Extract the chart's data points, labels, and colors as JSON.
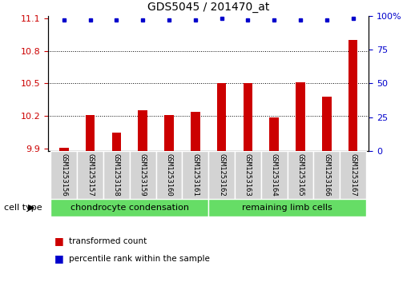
{
  "title": "GDS5045 / 201470_at",
  "samples": [
    "GSM1253156",
    "GSM1253157",
    "GSM1253158",
    "GSM1253159",
    "GSM1253160",
    "GSM1253161",
    "GSM1253162",
    "GSM1253163",
    "GSM1253164",
    "GSM1253165",
    "GSM1253166",
    "GSM1253167"
  ],
  "bar_values": [
    9.91,
    10.21,
    10.05,
    10.25,
    10.21,
    10.24,
    10.5,
    10.5,
    10.19,
    10.51,
    10.38,
    10.9
  ],
  "percentile_values": [
    97,
    97,
    97,
    97,
    97,
    97,
    98,
    97,
    97,
    97,
    97,
    98
  ],
  "ylim_left": [
    9.88,
    11.12
  ],
  "ylim_right": [
    0,
    100
  ],
  "yticks_left": [
    9.9,
    10.2,
    10.5,
    10.8,
    11.1
  ],
  "yticks_right": [
    0,
    25,
    50,
    75,
    100
  ],
  "ytick_labels_right": [
    "0",
    "25",
    "50",
    "75",
    "100%"
  ],
  "grid_values": [
    10.2,
    10.5,
    10.8
  ],
  "bar_color": "#cc0000",
  "dot_color": "#0000cc",
  "bar_bottom": 9.88,
  "group1_label": "chondrocyte condensation",
  "group2_label": "remaining limb cells",
  "group1_indices": [
    0,
    1,
    2,
    3,
    4,
    5
  ],
  "group2_indices": [
    6,
    7,
    8,
    9,
    10,
    11
  ],
  "cell_type_label": "cell type",
  "legend_bar_label": "transformed count",
  "legend_dot_label": "percentile rank within the sample",
  "group1_color": "#66dd66",
  "group2_color": "#66dd66",
  "tick_color_left": "#cc0000",
  "tick_color_right": "#0000cc",
  "sample_bg_color": "#d3d3d3",
  "plot_bg": "#ffffff",
  "bar_width": 0.35
}
